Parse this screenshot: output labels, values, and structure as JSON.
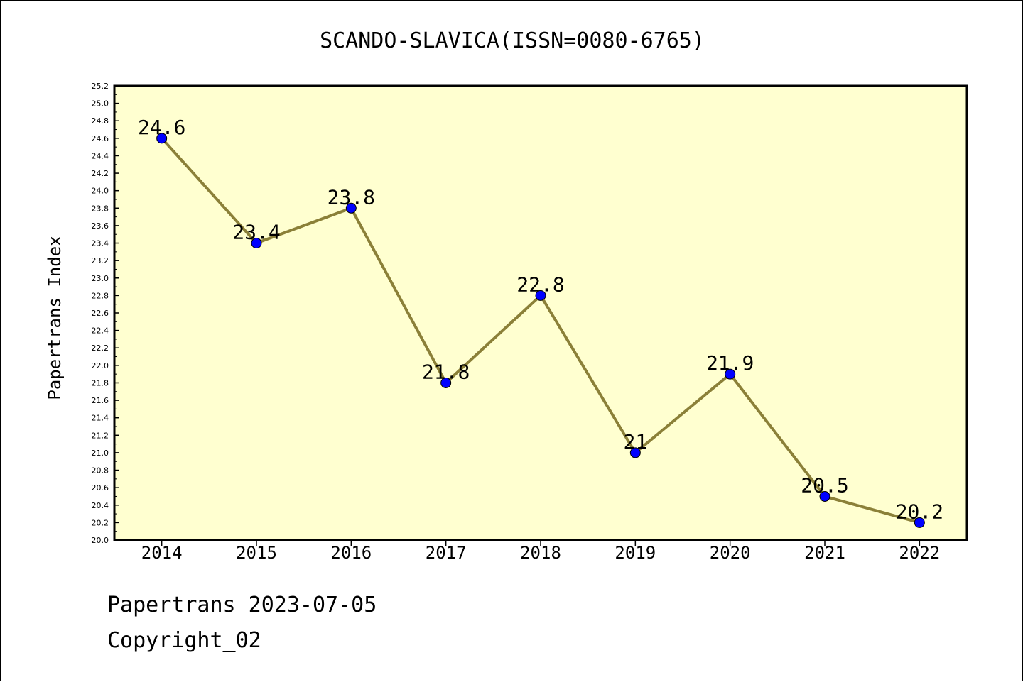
{
  "chart_data": {
    "type": "line",
    "title": "SCANDO-SLAVICA(ISSN=0080-6765)",
    "xlabel": "",
    "ylabel": "Papertrans Index",
    "categories": [
      "2014",
      "2015",
      "2016",
      "2017",
      "2018",
      "2019",
      "2020",
      "2021",
      "2022"
    ],
    "series": [
      {
        "values": [
          24.6,
          23.4,
          23.8,
          21.8,
          22.8,
          21.0,
          21.9,
          20.5,
          20.2
        ],
        "data_labels": [
          "24.6",
          "23.4",
          "23.8",
          "21.8",
          "22.8",
          "21",
          "21.9",
          "20.5",
          "20.2"
        ]
      }
    ],
    "ylim": [
      20.0,
      25.2
    ],
    "y_ticks": [
      "20.0",
      "20.2",
      "20.4",
      "20.6",
      "20.8",
      "21.0",
      "21.2",
      "21.4",
      "21.6",
      "21.8",
      "22.0",
      "22.2",
      "22.4",
      "22.6",
      "22.8",
      "23.0",
      "23.2",
      "23.4",
      "23.6",
      "23.8",
      "24.0",
      "24.2",
      "24.4",
      "24.6",
      "24.8",
      "25.0",
      "25.2"
    ],
    "grid": false,
    "colors": {
      "plot_background": "#ffffd0",
      "line": "#8b8038",
      "marker": "#0000ff"
    }
  },
  "footer": {
    "date_line": "Papertrans 2023-07-05",
    "copyright_line": "Copyright_02"
  }
}
